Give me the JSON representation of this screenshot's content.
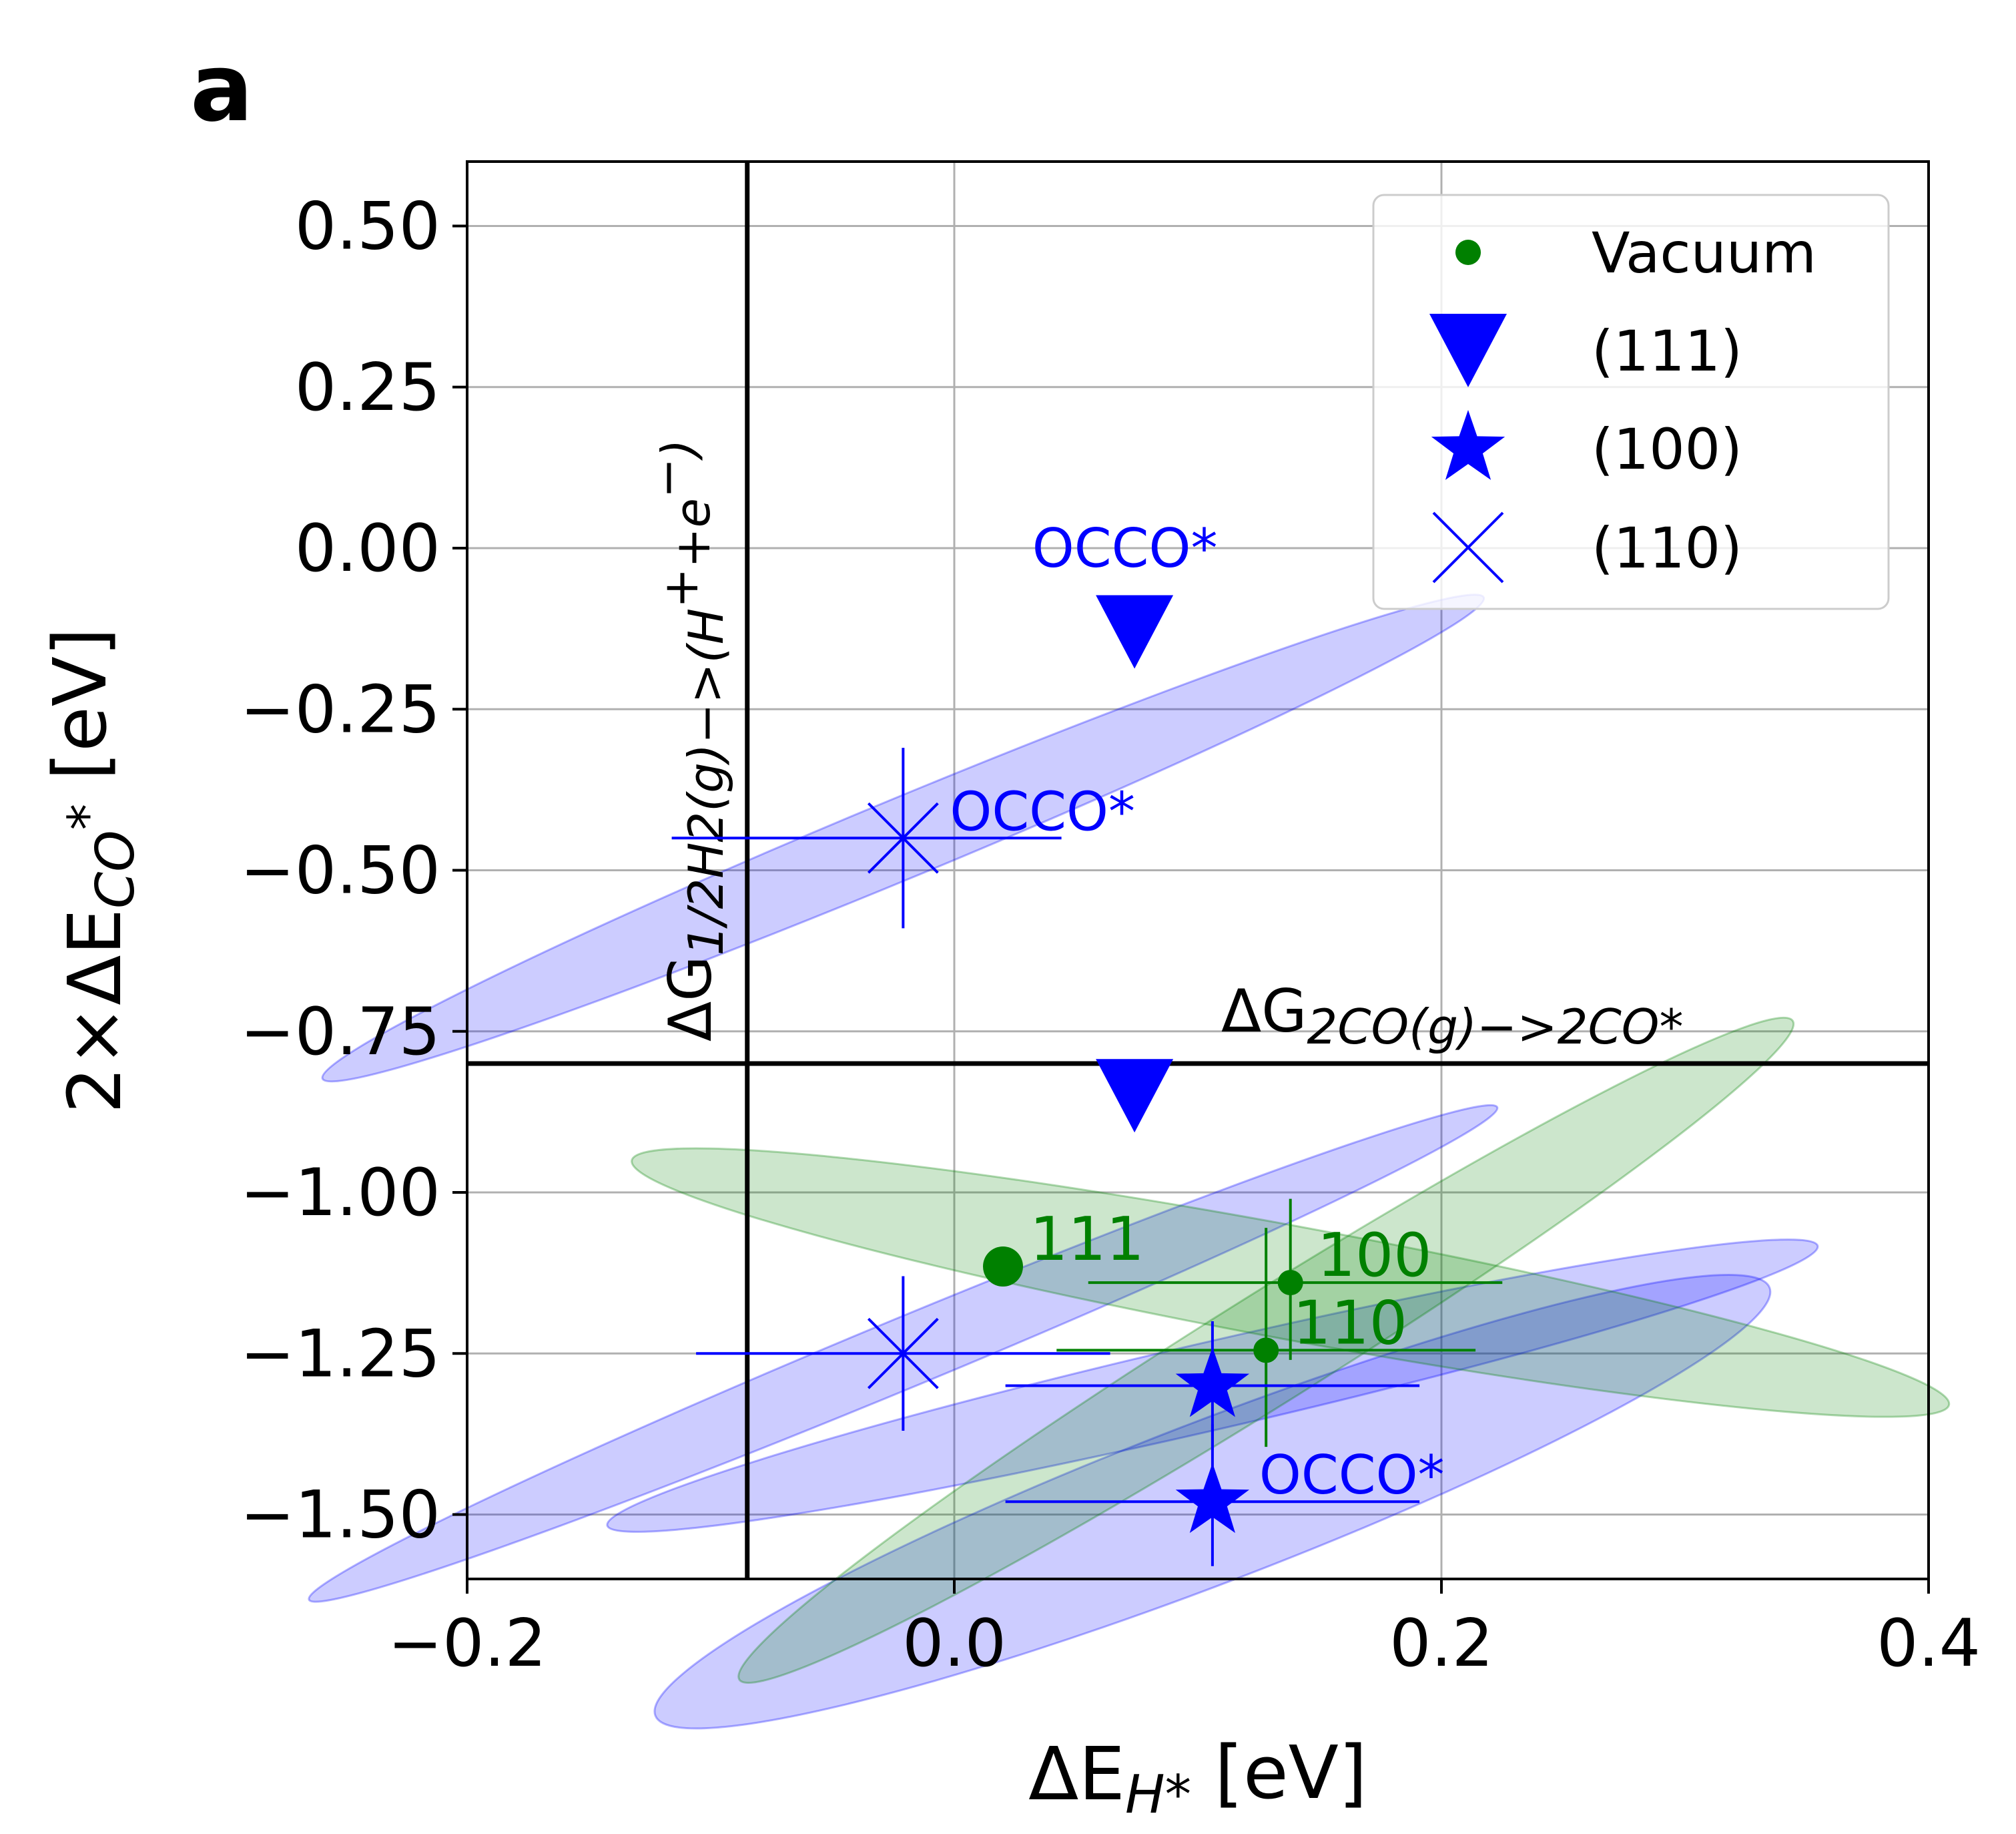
{
  "panel_label": "a",
  "colors": {
    "vacuum": "#008000",
    "surface": "#0000ff",
    "ellipse_blue": "#0000ff",
    "ellipse_green": "#008000",
    "grid": "#b0b0b0",
    "axis": "#000000"
  },
  "chart_data": {
    "type": "scatter",
    "xlabel": "ΔE_{H*}  [eV]",
    "ylabel": "2×ΔE_{CO*}  [eV]",
    "xlim": [
      -0.2,
      0.4
    ],
    "ylim": [
      -1.6,
      0.6
    ],
    "xticks": [
      -0.2,
      0.0,
      0.2,
      0.4
    ],
    "xtick_labels": [
      "−0.2",
      "0.0",
      "0.2",
      "0.4"
    ],
    "yticks": [
      0.5,
      0.25,
      0.0,
      -0.25,
      -0.5,
      -0.75,
      -1.0,
      -1.25,
      -1.5
    ],
    "ytick_labels": [
      "0.50",
      "0.25",
      "0.00",
      "−0.25",
      "−0.50",
      "−0.75",
      "−1.00",
      "−1.25",
      "−1.50"
    ],
    "grid": true,
    "legend_position": "top-right",
    "reference_lines": {
      "vertical": {
        "x": -0.085,
        "label": "ΔG_{1/2H2(g)−>(H⁺+e⁻)}"
      },
      "horizontal": {
        "y": -0.8,
        "label": "ΔG_{2CO(g)−>2CO*}"
      }
    },
    "series": [
      {
        "name": "Vacuum",
        "marker": "circle",
        "color": "#008000",
        "points": [
          {
            "x": 0.02,
            "y": -1.115,
            "label": "111",
            "size": "large"
          },
          {
            "x": 0.138,
            "y": -1.14,
            "label": "100",
            "xerr": [
              0.083,
              0.087
            ],
            "yerr": [
              0.12,
              0.13
            ]
          },
          {
            "x": 0.128,
            "y": -1.245,
            "label": "110",
            "xerr": [
              0.086,
              0.086
            ],
            "yerr": [
              0.15,
              0.19
            ]
          }
        ]
      },
      {
        "name": "(111)",
        "marker": "triangle-down",
        "color": "#0000ff",
        "points": [
          {
            "x": 0.074,
            "y": -0.13
          },
          {
            "x": 0.074,
            "y": -0.85
          }
        ]
      },
      {
        "name": "(100)",
        "marker": "star",
        "color": "#0000ff",
        "points": [
          {
            "x": 0.106,
            "y": -1.3,
            "xerr": [
              0.085,
              0.085
            ],
            "yerr": [
              0.1,
              0.1
            ]
          },
          {
            "x": 0.106,
            "y": -1.48,
            "xerr": [
              0.085,
              0.085
            ],
            "yerr": [
              0.1,
              0.12
            ],
            "annotation": "OCCO*"
          }
        ]
      },
      {
        "name": "(110)",
        "marker": "x",
        "color": "#0000ff",
        "points": [
          {
            "x": -0.021,
            "y": -0.45,
            "xerr": [
              0.095,
              0.065
            ],
            "yerr": [
              0.14,
              0.14
            ],
            "annotation": "OCCO*"
          },
          {
            "x": -0.021,
            "y": -1.25,
            "xerr": [
              0.085,
              0.085
            ],
            "yerr": [
              0.12,
              0.12
            ]
          }
        ]
      }
    ],
    "annotations": [
      {
        "text": "OCCO*",
        "x": 0.032,
        "y": 0.0,
        "color": "#0000ff"
      }
    ],
    "uncertainty_ellipses": [
      {
        "cx": -0.021,
        "cy": -0.45,
        "rx": 0.258,
        "ry": 0.062,
        "angle_deg": 22.5,
        "color": "#0000ff"
      },
      {
        "cx": -0.021,
        "cy": -1.25,
        "rx": 0.264,
        "ry": 0.054,
        "angle_deg": 22.5,
        "color": "#0000ff"
      },
      {
        "cx": 0.106,
        "cy": -1.3,
        "rx": 0.255,
        "ry": 0.068,
        "angle_deg": 13,
        "color": "#0000ff"
      },
      {
        "cx": 0.106,
        "cy": -1.48,
        "rx": 0.245,
        "ry": 0.125,
        "angle_deg": 21,
        "color": "#0000ff"
      },
      {
        "cx": 0.138,
        "cy": -1.14,
        "rx": 0.275,
        "ry": 0.088,
        "angle_deg": -10.5,
        "color": "#008000"
      },
      {
        "cx": 0.128,
        "cy": -1.245,
        "rx": 0.255,
        "ry": 0.085,
        "angle_deg": 32,
        "color": "#008000"
      }
    ]
  }
}
